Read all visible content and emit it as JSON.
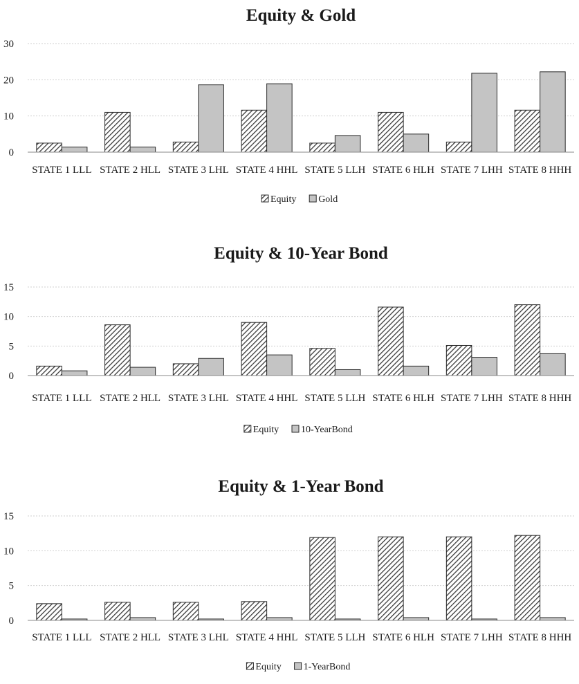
{
  "colors": {
    "bar_primary_fill": "#ffffff",
    "bar_primary_hatch": "#3a3a3a",
    "bar_secondary": "#c4c4c4",
    "bar_outline": "#2a2a2a",
    "gridline": "#cfcfcf",
    "axis": "#888888"
  },
  "chart_data": [
    {
      "type": "bar",
      "title": "Equity & Gold",
      "categories": [
        "STATE 1 LLL",
        "STATE 2 HLL",
        "STATE 3 LHL",
        "STATE 4 HHL",
        "STATE 5 LLH",
        "STATE 6 HLH",
        "STATE 7 LHH",
        "STATE 8 HHH"
      ],
      "series": [
        {
          "name": "Equity",
          "pattern": "hatched",
          "values": [
            2.5,
            11.0,
            2.8,
            11.6,
            2.5,
            11.0,
            2.8,
            11.6
          ]
        },
        {
          "name": "Gold",
          "pattern": "solid",
          "values": [
            1.4,
            1.4,
            18.6,
            18.9,
            4.6,
            5.0,
            21.8,
            22.2
          ]
        }
      ],
      "ylim": [
        0,
        30
      ],
      "yticks": [
        0,
        10,
        20,
        30
      ],
      "grid": true,
      "legend": "bottom-center"
    },
    {
      "type": "bar",
      "title": "Equity & 10-Year Bond",
      "categories": [
        "STATE 1 LLL",
        "STATE 2 HLL",
        "STATE 3 LHL",
        "STATE 4 HHL",
        "STATE 5 LLH",
        "STATE 6 HLH",
        "STATE 7 LHH",
        "STATE 8 HHH"
      ],
      "series": [
        {
          "name": "Equity",
          "pattern": "hatched",
          "values": [
            1.6,
            8.6,
            2.0,
            9.0,
            4.6,
            11.6,
            5.1,
            12.0
          ]
        },
        {
          "name": "10-YearBond",
          "pattern": "solid",
          "values": [
            0.8,
            1.4,
            2.9,
            3.5,
            1.0,
            1.6,
            3.1,
            3.7
          ]
        }
      ],
      "ylim": [
        0,
        15
      ],
      "yticks": [
        0,
        5,
        10,
        15
      ],
      "grid": true,
      "legend": "bottom-center"
    },
    {
      "type": "bar",
      "title": "Equity & 1-Year Bond",
      "categories": [
        "STATE 1 LLL",
        "STATE 2 HLL",
        "STATE 3 LHL",
        "STATE 4 HHL",
        "STATE 5 LLH",
        "STATE 6 HLH",
        "STATE 7 LHH",
        "STATE 8 HHH"
      ],
      "series": [
        {
          "name": "Equity",
          "pattern": "hatched",
          "values": [
            2.4,
            2.6,
            2.6,
            2.7,
            11.9,
            12.0,
            12.0,
            12.2
          ]
        },
        {
          "name": "1-YearBond",
          "pattern": "solid",
          "values": [
            0.2,
            0.4,
            0.2,
            0.4,
            0.2,
            0.4,
            0.2,
            0.4
          ]
        }
      ],
      "ylim": [
        0,
        15
      ],
      "yticks": [
        0,
        5,
        10,
        15
      ],
      "grid": true,
      "legend": "bottom-center"
    }
  ]
}
